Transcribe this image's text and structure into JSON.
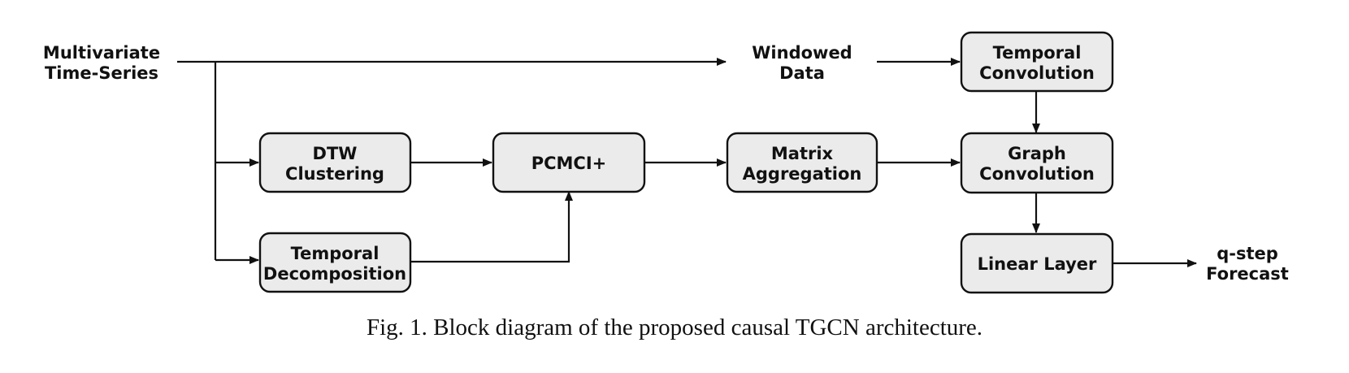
{
  "diagram": {
    "nodes": {
      "multivariate": [
        "Multivariate",
        "Time-Series"
      ],
      "windowed": [
        "Windowed",
        "Data"
      ],
      "temporal_convolution": [
        "Temporal",
        "Convolution"
      ],
      "dtw_clustering": [
        "DTW",
        "Clustering"
      ],
      "pcmci": [
        "PCMCI+"
      ],
      "matrix_aggregation": [
        "Matrix",
        "Aggregation"
      ],
      "graph_convolution": [
        "Graph",
        "Convolution"
      ],
      "temporal_decomposition": [
        "Temporal",
        "Decomposition"
      ],
      "linear_layer": [
        "Linear Layer"
      ],
      "forecast": [
        "q-step",
        "Forecast"
      ]
    },
    "edges": [
      [
        "multivariate",
        "windowed"
      ],
      [
        "multivariate",
        "dtw_clustering"
      ],
      [
        "multivariate",
        "temporal_decomposition"
      ],
      [
        "windowed",
        "temporal_convolution"
      ],
      [
        "dtw_clustering",
        "pcmci"
      ],
      [
        "temporal_decomposition",
        "pcmci"
      ],
      [
        "pcmci",
        "matrix_aggregation"
      ],
      [
        "matrix_aggregation",
        "graph_convolution"
      ],
      [
        "temporal_convolution",
        "graph_convolution"
      ],
      [
        "graph_convolution",
        "linear_layer"
      ],
      [
        "linear_layer",
        "forecast"
      ]
    ]
  },
  "caption": "Fig. 1.  Block diagram of the proposed causal TGCN architecture."
}
